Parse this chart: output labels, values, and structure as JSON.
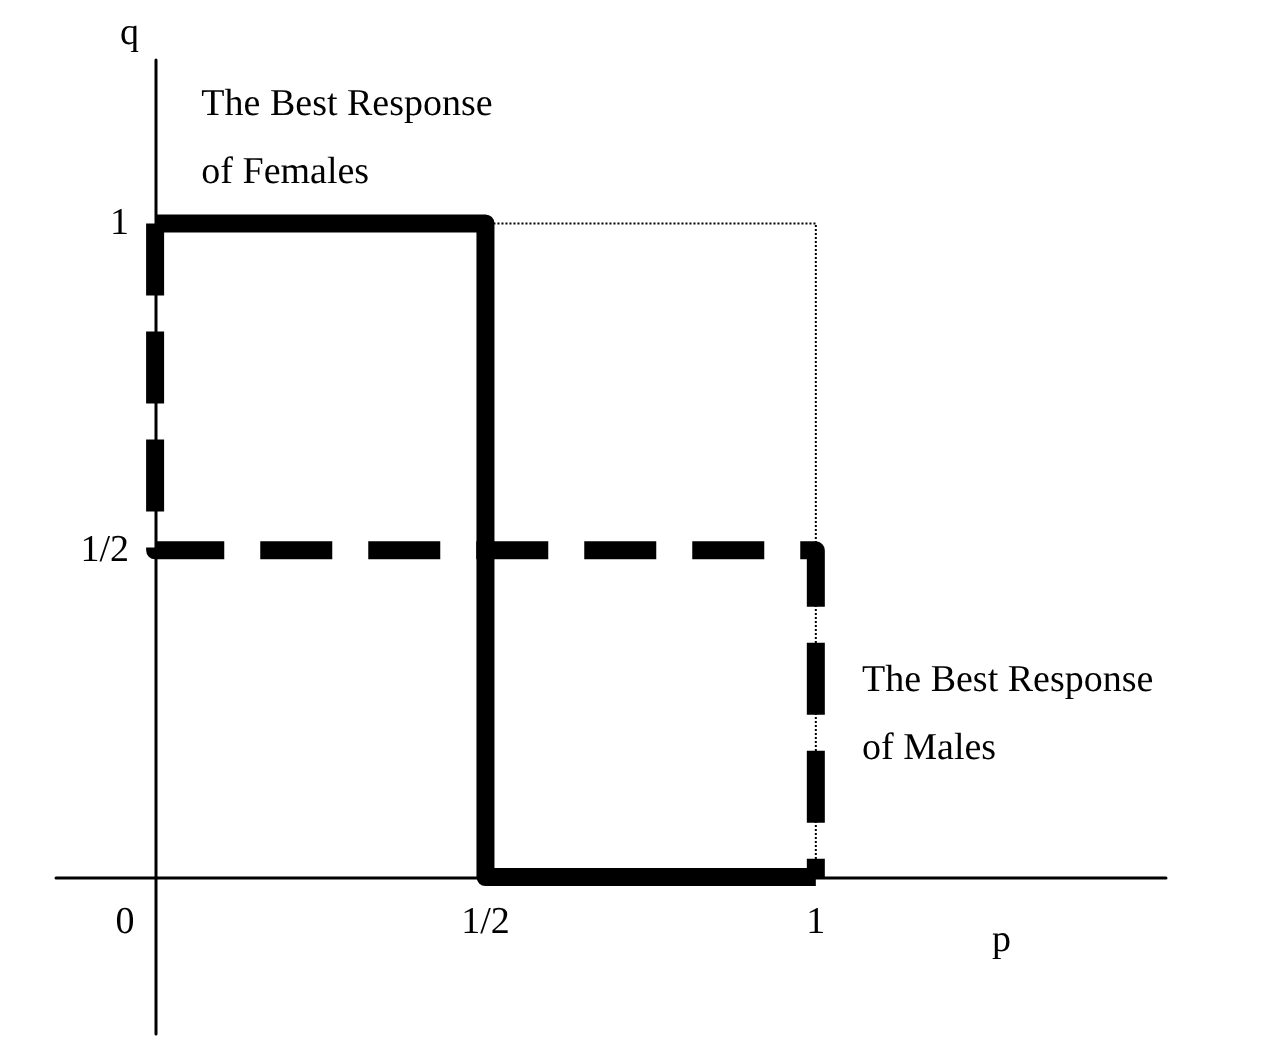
{
  "chart_data": {
    "type": "line",
    "xlabel": "p",
    "ylabel": "q",
    "xlim": [
      -0.15,
      1.53
    ],
    "ylim": [
      -0.24,
      1.25
    ],
    "xticks": [
      {
        "value": 0,
        "label": "0"
      },
      {
        "value": 0.5,
        "label": "1/2"
      },
      {
        "value": 1,
        "label": "1"
      }
    ],
    "yticks": [
      {
        "value": 0.5,
        "label": "1/2"
      },
      {
        "value": 1,
        "label": "1"
      }
    ],
    "series": [
      {
        "color": "#000000",
        "line_style": "dotted",
        "x": [
          0.5,
          1,
          1
        ],
        "values": [
          1,
          1,
          0
        ]
      },
      {
        "color": "#000000",
        "line_style": "solid",
        "x": [
          0,
          0.5,
          0.5,
          1
        ],
        "values": [
          1,
          1,
          0,
          0
        ]
      },
      {
        "color": "#000000",
        "line_style": "dashed",
        "x": [
          0,
          0,
          1,
          1
        ],
        "values": [
          1,
          0.5,
          0.5,
          0
        ]
      }
    ],
    "annotations": [
      "The Best Response\nof Females",
      "The Best Response\nof Males"
    ],
    "marker": "none",
    "grid": false
  }
}
